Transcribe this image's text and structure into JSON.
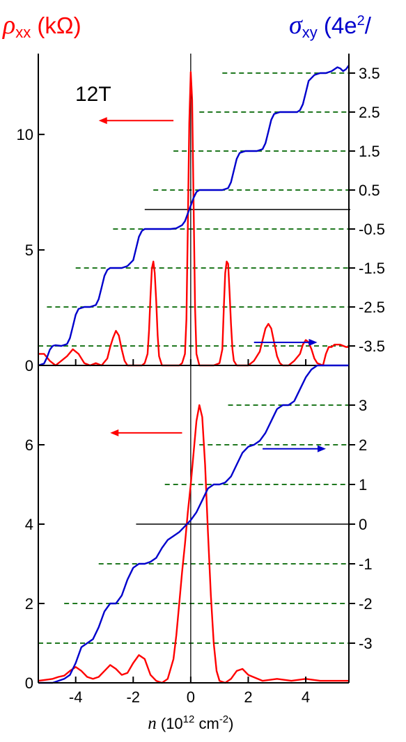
{
  "header": {
    "left_symbol": "ρ",
    "left_sub": "xx",
    "left_unit": "(kΩ)",
    "right_symbol": "σ",
    "right_sub": "xy",
    "right_unit_pre": "(4e",
    "right_unit_sup": "2",
    "right_unit_post": "/"
  },
  "colors": {
    "rho": "#ff0000",
    "sigma": "#0000cc",
    "dashed": "#006600",
    "axis": "#000000"
  },
  "chart_data": [
    {
      "type": "line",
      "panel": "top",
      "annotation": "12T",
      "xlim": [
        -5.3,
        5.5
      ],
      "x_ticks": [
        -4,
        -2,
        0,
        2,
        4
      ],
      "ylim_left": [
        0,
        13.5
      ],
      "left_ticks": [
        0,
        5,
        10
      ],
      "left_tick_labels": [
        "0",
        "5",
        "10"
      ],
      "ylim_right": [
        -4.0,
        4.0
      ],
      "right_ticks": [
        3.5,
        2.5,
        1.5,
        0.5,
        -0.5,
        -1.5,
        -2.5,
        -3.5
      ],
      "right_tick_labels": [
        "3.5",
        "2.5",
        "1.5",
        "0.5",
        "-0.5",
        "-1.5",
        "-2.5",
        "-3.5"
      ],
      "zero_line": 0,
      "plateaus": [
        {
          "value": 3.5,
          "x_from": 1.1
        },
        {
          "value": 2.5,
          "x_from": 0.3
        },
        {
          "value": 1.5,
          "x_from": -0.6
        },
        {
          "value": 0.5,
          "x_from": -1.3
        },
        {
          "value": -0.5,
          "x_from": -2.7
        },
        {
          "value": -1.5,
          "x_from": -4.0
        },
        {
          "value": -2.5,
          "x_from": -5.0
        },
        {
          "value": -3.5,
          "x_from": -5.3
        }
      ],
      "zero_line_from": -1.6,
      "left_arrow": {
        "x_from": -0.6,
        "x_to": -3.2,
        "y": 10.6
      },
      "right_arrow": {
        "x_from": 2.2,
        "x_to": 4.4,
        "y": 1.0
      },
      "series": [
        {
          "axis": "left",
          "x": [
            -5.3,
            -5.1,
            -4.9,
            -4.7,
            -4.5,
            -4.3,
            -4.1,
            -3.9,
            -3.7,
            -3.5,
            -3.3,
            -3.1,
            -2.9,
            -2.8,
            -2.7,
            -2.6,
            -2.5,
            -2.4,
            -2.3,
            -2.2,
            -2.1,
            -2.0,
            -1.9,
            -1.8,
            -1.7,
            -1.6,
            -1.5,
            -1.45,
            -1.4,
            -1.35,
            -1.3,
            -1.25,
            -1.2,
            -1.15,
            -1.1,
            -1.0,
            -0.9,
            -0.8,
            -0.6,
            -0.4,
            -0.3,
            -0.2,
            -0.15,
            -0.1,
            -0.05,
            0.0,
            0.05,
            0.1,
            0.15,
            0.2,
            0.3,
            0.4,
            0.6,
            0.8,
            1.0,
            1.1,
            1.15,
            1.2,
            1.25,
            1.3,
            1.35,
            1.4,
            1.45,
            1.5,
            1.6,
            1.8,
            2.0,
            2.2,
            2.4,
            2.5,
            2.6,
            2.7,
            2.8,
            2.9,
            3.0,
            3.1,
            3.2,
            3.4,
            3.6,
            3.8,
            3.9,
            4.0,
            4.1,
            4.2,
            4.3,
            4.4,
            4.6,
            4.7,
            4.8,
            4.9,
            5.0,
            5.2,
            5.4,
            5.5
          ],
          "y": [
            0.5,
            0.5,
            0.2,
            0.0,
            0.2,
            0.4,
            0.7,
            0.5,
            0.1,
            0.0,
            0.1,
            0.0,
            0.3,
            0.8,
            1.2,
            1.5,
            1.3,
            0.7,
            0.2,
            0.0,
            0.0,
            0.0,
            0.0,
            0.0,
            0.0,
            0.1,
            0.5,
            1.5,
            3.0,
            4.2,
            4.5,
            4.0,
            2.8,
            1.3,
            0.4,
            0.0,
            0.0,
            0.0,
            0.0,
            0.0,
            0.1,
            0.5,
            2.0,
            6.0,
            10.5,
            12.7,
            11.5,
            7.0,
            2.5,
            0.5,
            0.0,
            0.0,
            0.0,
            0.0,
            0.1,
            0.7,
            2.5,
            4.0,
            4.5,
            4.4,
            3.2,
            1.8,
            0.7,
            0.2,
            0.0,
            0.0,
            0.0,
            0.2,
            0.6,
            1.1,
            1.6,
            1.8,
            1.6,
            1.0,
            0.4,
            0.1,
            0.0,
            0.0,
            0.2,
            0.5,
            0.9,
            1.1,
            1.0,
            0.7,
            0.3,
            0.1,
            0.0,
            0.5,
            0.8,
            0.8,
            0.9,
            0.9,
            0.8,
            0.8
          ]
        },
        {
          "axis": "right",
          "x": [
            -5.3,
            -5.1,
            -5.0,
            -4.9,
            -4.8,
            -4.7,
            -4.5,
            -4.3,
            -4.2,
            -4.1,
            -4.0,
            -3.9,
            -3.7,
            -3.5,
            -3.3,
            -3.2,
            -3.1,
            -3.0,
            -2.9,
            -2.8,
            -2.6,
            -2.4,
            -2.2,
            -2.0,
            -1.9,
            -1.8,
            -1.7,
            -1.6,
            -1.5,
            -1.3,
            -1.1,
            -0.9,
            -0.7,
            -0.5,
            -0.3,
            -0.2,
            -0.1,
            0.0,
            0.1,
            0.2,
            0.3,
            0.5,
            0.7,
            0.9,
            1.1,
            1.3,
            1.4,
            1.5,
            1.6,
            1.7,
            1.9,
            2.1,
            2.3,
            2.5,
            2.6,
            2.7,
            2.8,
            2.9,
            3.1,
            3.3,
            3.5,
            3.7,
            3.8,
            3.9,
            4.0,
            4.1,
            4.3,
            4.5,
            4.7,
            4.9,
            5.0,
            5.1,
            5.2,
            5.3,
            5.4,
            5.5
          ],
          "y": [
            -4.0,
            -3.95,
            -3.8,
            -3.6,
            -3.5,
            -3.48,
            -3.5,
            -3.45,
            -3.3,
            -3.0,
            -2.7,
            -2.55,
            -2.5,
            -2.5,
            -2.45,
            -2.3,
            -2.0,
            -1.7,
            -1.55,
            -1.5,
            -1.5,
            -1.5,
            -1.45,
            -1.3,
            -1.0,
            -0.7,
            -0.55,
            -0.5,
            -0.5,
            -0.5,
            -0.5,
            -0.5,
            -0.5,
            -0.48,
            -0.4,
            -0.3,
            -0.1,
            0.1,
            0.3,
            0.45,
            0.5,
            0.5,
            0.5,
            0.5,
            0.5,
            0.55,
            0.7,
            1.0,
            1.3,
            1.45,
            1.5,
            1.5,
            1.5,
            1.55,
            1.7,
            2.0,
            2.3,
            2.45,
            2.5,
            2.5,
            2.5,
            2.5,
            2.55,
            2.7,
            3.0,
            3.3,
            3.45,
            3.5,
            3.5,
            3.55,
            3.6,
            3.65,
            3.62,
            3.55,
            3.6,
            3.7
          ]
        }
      ]
    },
    {
      "type": "line",
      "panel": "bottom",
      "xlim": [
        -5.3,
        5.5
      ],
      "x_ticks": [
        -4,
        -2,
        0,
        2,
        4
      ],
      "x_tick_labels": [
        "-4",
        "-2",
        "0",
        "2",
        "4"
      ],
      "xlabel_var": "n",
      "xlabel_unit_pre": "(10",
      "xlabel_unit_sup": "12",
      "xlabel_unit_mid": " cm",
      "xlabel_unit_sup2": "-2",
      "xlabel_unit_post": ")",
      "ylim_left": [
        0,
        8
      ],
      "left_ticks": [
        0,
        2,
        4,
        6
      ],
      "left_tick_labels": [
        "0",
        "2",
        "4",
        "6"
      ],
      "ylim_right": [
        -4.0,
        4.0
      ],
      "right_ticks": [
        3,
        2,
        1,
        0,
        -1,
        -2,
        -3
      ],
      "right_tick_labels": [
        "3",
        "2",
        "1",
        "0",
        "-1",
        "-2",
        "-3"
      ],
      "zero_line": 0,
      "plateaus": [
        {
          "value": 3,
          "x_from": 1.3
        },
        {
          "value": 2,
          "x_from": 0.3
        },
        {
          "value": 1,
          "x_from": -0.9
        },
        {
          "value": -1,
          "x_from": -3.2
        },
        {
          "value": -2,
          "x_from": -4.4
        },
        {
          "value": -3,
          "x_from": -5.3
        }
      ],
      "zero_line_from": -1.9,
      "left_arrow": {
        "x_from": -0.3,
        "x_to": -2.8,
        "y": 6.3
      },
      "right_arrow": {
        "x_from": 2.5,
        "x_to": 4.7,
        "y": 5.9
      },
      "series": [
        {
          "axis": "left",
          "x": [
            -5.3,
            -5.0,
            -4.8,
            -4.6,
            -4.4,
            -4.2,
            -4.0,
            -3.8,
            -3.6,
            -3.4,
            -3.2,
            -3.0,
            -2.8,
            -2.6,
            -2.4,
            -2.2,
            -2.0,
            -1.8,
            -1.6,
            -1.4,
            -1.2,
            -1.0,
            -0.8,
            -0.6,
            -0.5,
            -0.4,
            -0.3,
            -0.2,
            -0.1,
            0.0,
            0.1,
            0.2,
            0.3,
            0.4,
            0.5,
            0.6,
            0.7,
            0.8,
            0.9,
            1.0,
            1.2,
            1.4,
            1.6,
            1.8,
            2.0,
            2.5,
            3.0,
            3.5,
            4.0,
            4.5,
            5.0,
            5.5
          ],
          "y": [
            0.05,
            0.08,
            0.1,
            0.15,
            0.18,
            0.3,
            0.4,
            0.3,
            0.15,
            0.1,
            0.15,
            0.3,
            0.45,
            0.35,
            0.2,
            0.25,
            0.5,
            0.7,
            0.6,
            0.2,
            0.05,
            0.0,
            0.1,
            0.6,
            1.2,
            2.0,
            2.8,
            3.5,
            4.3,
            5.0,
            5.8,
            6.6,
            7.0,
            6.7,
            5.5,
            3.8,
            2.2,
            1.0,
            0.3,
            0.05,
            0.0,
            0.1,
            0.3,
            0.35,
            0.2,
            0.05,
            0.1,
            0.05,
            0.1,
            0.05,
            0.05,
            0.05
          ]
        },
        {
          "axis": "right",
          "x": [
            -5.3,
            -5.0,
            -4.8,
            -4.6,
            -4.4,
            -4.2,
            -4.0,
            -3.8,
            -3.6,
            -3.4,
            -3.2,
            -3.0,
            -2.8,
            -2.6,
            -2.4,
            -2.2,
            -2.0,
            -1.8,
            -1.6,
            -1.4,
            -1.2,
            -1.0,
            -0.8,
            -0.6,
            -0.4,
            -0.2,
            0.0,
            0.2,
            0.4,
            0.6,
            0.8,
            1.0,
            1.2,
            1.4,
            1.6,
            1.8,
            2.0,
            2.2,
            2.4,
            2.6,
            2.8,
            3.0,
            3.2,
            3.4,
            3.6,
            3.8,
            4.0,
            4.2,
            4.4,
            4.6,
            4.8,
            5.0,
            5.2,
            5.5
          ],
          "y": [
            -4.0,
            -4.0,
            -4.0,
            -3.95,
            -3.9,
            -3.8,
            -3.5,
            -3.1,
            -3.0,
            -2.9,
            -2.6,
            -2.2,
            -2.0,
            -2.0,
            -1.8,
            -1.4,
            -1.1,
            -1.0,
            -1.0,
            -0.95,
            -0.85,
            -0.6,
            -0.4,
            -0.3,
            -0.2,
            -0.05,
            0.1,
            0.3,
            0.6,
            0.9,
            1.0,
            1.0,
            1.05,
            1.2,
            1.5,
            1.8,
            1.95,
            2.0,
            2.1,
            2.3,
            2.6,
            2.9,
            3.0,
            3.0,
            3.1,
            3.4,
            3.7,
            3.9,
            4.0,
            4.0,
            4.0,
            4.0,
            4.0,
            4.0
          ]
        }
      ]
    }
  ]
}
